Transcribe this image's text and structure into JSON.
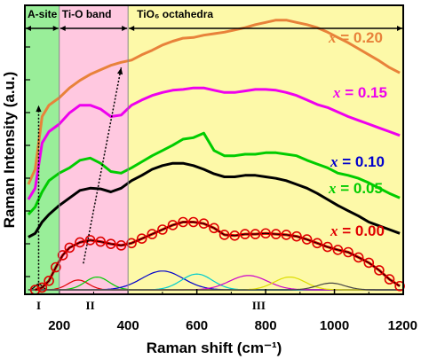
{
  "chart_data": {
    "type": "line",
    "xlabel": "Raman shift (cm⁻¹)",
    "ylabel": "Raman Intensity (a.u.)",
    "xlim": [
      100,
      1200
    ],
    "x_ticks": [
      "200",
      "400",
      "600",
      "800",
      "1000",
      "1200"
    ],
    "x_tick_values": [
      200,
      400,
      600,
      800,
      1000,
      1200
    ],
    "regions": [
      {
        "name": "A-site",
        "range": [
          100,
          200
        ],
        "color": "#99ee99"
      },
      {
        "name": "Ti-O band",
        "range": [
          200,
          400
        ],
        "color": "#ffc8e0"
      },
      {
        "name": "TiO₆ octahedra",
        "range": [
          400,
          1200
        ],
        "color": "#fdf9a8"
      }
    ],
    "roman_labels": [
      {
        "text": "I",
        "x": 140
      },
      {
        "text": "II",
        "x": 290
      },
      {
        "text": "III",
        "x": 780
      }
    ],
    "series": [
      {
        "name": "x = 0.00",
        "color": "#e00000",
        "x": [
          130,
          150,
          170,
          190,
          210,
          230,
          260,
          290,
          320,
          350,
          380,
          410,
          440,
          470,
          500,
          530,
          560,
          590,
          620,
          650,
          680,
          710,
          740,
          770,
          800,
          830,
          860,
          890,
          920,
          950,
          980,
          1010,
          1040,
          1070,
          1100,
          1130,
          1160,
          1190
        ],
        "y": [
          0.0,
          0.03,
          0.12,
          0.3,
          0.46,
          0.56,
          0.63,
          0.66,
          0.64,
          0.61,
          0.59,
          0.62,
          0.68,
          0.74,
          0.8,
          0.86,
          0.9,
          0.9,
          0.88,
          0.82,
          0.73,
          0.72,
          0.74,
          0.74,
          0.75,
          0.74,
          0.73,
          0.71,
          0.67,
          0.62,
          0.57,
          0.53,
          0.5,
          0.43,
          0.36,
          0.26,
          0.14,
          0.05
        ]
      },
      {
        "name": "x = 0.05",
        "color": "#00cc00",
        "x": [
          110,
          130,
          150,
          170,
          200,
          230,
          260,
          290,
          320,
          350,
          380,
          410,
          440,
          470,
          500,
          530,
          560,
          590,
          620,
          650,
          680,
          710,
          740,
          770,
          800,
          830,
          860,
          890,
          920,
          950,
          980,
          1010,
          1040,
          1070,
          1100,
          1130,
          1160,
          1190
        ],
        "y": [
          1.0,
          1.1,
          1.3,
          1.45,
          1.55,
          1.62,
          1.72,
          1.75,
          1.68,
          1.57,
          1.55,
          1.62,
          1.7,
          1.78,
          1.85,
          1.92,
          2.0,
          2.02,
          2.08,
          1.85,
          1.78,
          1.78,
          1.8,
          1.8,
          1.82,
          1.82,
          1.8,
          1.78,
          1.72,
          1.67,
          1.62,
          1.55,
          1.52,
          1.48,
          1.42,
          1.35,
          1.28,
          1.22
        ]
      },
      {
        "name": "x = 0.10",
        "color": "#000000",
        "x": [
          110,
          130,
          150,
          170,
          200,
          230,
          260,
          290,
          320,
          350,
          380,
          410,
          440,
          470,
          500,
          530,
          560,
          590,
          620,
          650,
          680,
          710,
          740,
          770,
          800,
          830,
          860,
          890,
          920,
          950,
          980,
          1010,
          1040,
          1070,
          1100,
          1130,
          1160,
          1190
        ],
        "y": [
          0.7,
          0.75,
          0.9,
          1.0,
          1.12,
          1.22,
          1.32,
          1.35,
          1.34,
          1.3,
          1.35,
          1.45,
          1.52,
          1.6,
          1.65,
          1.68,
          1.68,
          1.65,
          1.6,
          1.54,
          1.5,
          1.5,
          1.52,
          1.52,
          1.5,
          1.48,
          1.45,
          1.4,
          1.35,
          1.28,
          1.2,
          1.12,
          1.05,
          0.98,
          0.9,
          0.85,
          0.8,
          0.75
        ]
      },
      {
        "name": "x = 0.15",
        "color": "#ee00ee",
        "x": [
          110,
          130,
          150,
          170,
          200,
          230,
          260,
          290,
          320,
          350,
          380,
          410,
          440,
          470,
          500,
          530,
          560,
          590,
          620,
          650,
          680,
          710,
          740,
          770,
          800,
          830,
          860,
          890,
          920,
          950,
          980,
          1010,
          1040,
          1070,
          1100,
          1130,
          1160,
          1190
        ],
        "y": [
          1.2,
          1.35,
          1.95,
          2.1,
          2.2,
          2.35,
          2.45,
          2.45,
          2.4,
          2.3,
          2.32,
          2.45,
          2.52,
          2.58,
          2.62,
          2.65,
          2.66,
          2.68,
          2.68,
          2.65,
          2.62,
          2.62,
          2.64,
          2.66,
          2.66,
          2.65,
          2.62,
          2.58,
          2.52,
          2.46,
          2.42,
          2.36,
          2.3,
          2.25,
          2.2,
          2.15,
          2.1,
          2.05
        ]
      },
      {
        "name": "x = 0.20",
        "color": "#e8823a",
        "x": [
          110,
          130,
          150,
          170,
          200,
          230,
          260,
          290,
          320,
          350,
          380,
          410,
          440,
          470,
          500,
          530,
          560,
          590,
          620,
          650,
          680,
          710,
          740,
          770,
          800,
          830,
          860,
          890,
          920,
          950,
          980,
          1010,
          1040,
          1070,
          1100,
          1130,
          1160,
          1190
        ],
        "y": [
          1.4,
          1.6,
          2.3,
          2.45,
          2.55,
          2.68,
          2.78,
          2.86,
          2.92,
          2.98,
          3.02,
          3.05,
          3.12,
          3.18,
          3.25,
          3.3,
          3.34,
          3.35,
          3.38,
          3.4,
          3.42,
          3.45,
          3.48,
          3.52,
          3.55,
          3.58,
          3.58,
          3.55,
          3.52,
          3.48,
          3.42,
          3.35,
          3.28,
          3.2,
          3.12,
          3.04,
          2.95,
          2.88
        ]
      }
    ],
    "fit_components": [
      {
        "color": "#000000",
        "center": 140,
        "height": 0.08,
        "width": 10
      },
      {
        "color": "#e00000",
        "center": 255,
        "height": 0.13,
        "width": 30
      },
      {
        "color": "#00cc00",
        "center": 310,
        "height": 0.17,
        "width": 35
      },
      {
        "color": "#0000cc",
        "center": 500,
        "height": 0.25,
        "width": 60
      },
      {
        "color": "#00cccc",
        "center": 600,
        "height": 0.21,
        "width": 45
      },
      {
        "color": "#cc00cc",
        "center": 750,
        "height": 0.19,
        "width": 55
      },
      {
        "color": "#dddd00",
        "center": 870,
        "height": 0.17,
        "width": 45
      },
      {
        "color": "#444444",
        "center": 990,
        "height": 0.09,
        "width": 40
      }
    ],
    "series_labels": [
      {
        "var": "x",
        "rest": " = 0.20",
        "color": "#e8823a"
      },
      {
        "var": "x",
        "rest": " = 0.15",
        "color": "#ee00ee"
      },
      {
        "var": "x",
        "rest": " = 0.10",
        "color": "#0000cc"
      },
      {
        "var": "x",
        "rest": " = 0.05",
        "color": "#00cc00"
      },
      {
        "var": "x",
        "rest": " = 0.00",
        "color": "#e00000"
      }
    ]
  }
}
